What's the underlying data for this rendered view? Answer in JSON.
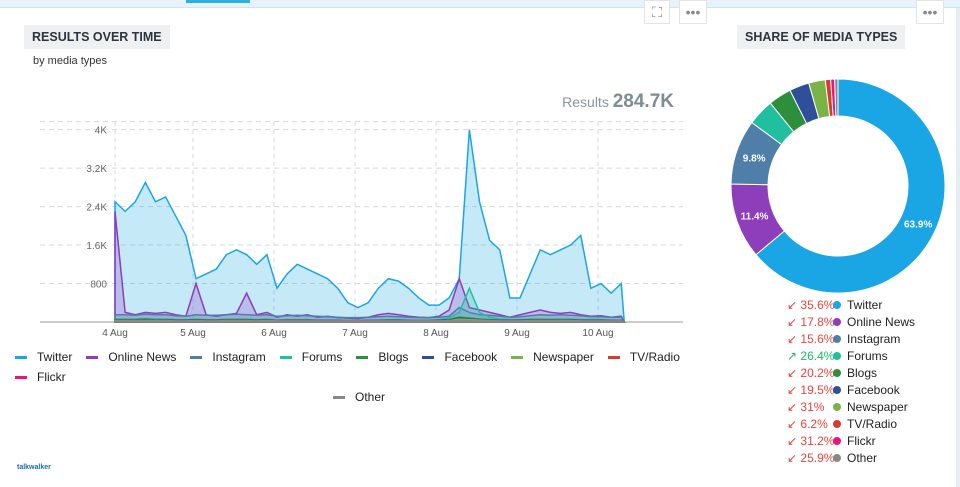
{
  "results_over_time": {
    "title": "RESULTS OVER TIME",
    "subtitle": "by media types",
    "results_label": "Results",
    "results_value": "284.7K"
  },
  "share": {
    "title": "SHARE OF MEDIA TYPES"
  },
  "icons": {
    "expand": "⛶",
    "more": "•••"
  },
  "logo": "talkwalker",
  "chart_data": [
    {
      "type": "area",
      "title": "RESULTS OVER TIME",
      "subtitle": "by media types",
      "x_start": "4 Aug",
      "step_hours": 3,
      "x_ticks": [
        "4 Aug",
        "5 Aug",
        "6 Aug",
        "7 Aug",
        "8 Aug",
        "9 Aug",
        "10 Aug"
      ],
      "y_ticks": [
        "800",
        "1.6K",
        "2.4K",
        "3.2K",
        "4K"
      ],
      "y_tick_values": [
        800,
        1600,
        2400,
        3200,
        4000
      ],
      "ylim": [
        0,
        4200
      ],
      "series": [
        {
          "name": "Twitter",
          "color": "#1aa6e4",
          "values": [
            2500,
            2300,
            2500,
            2900,
            2500,
            2600,
            2200,
            1800,
            900,
            1000,
            1100,
            1400,
            1500,
            1400,
            1200,
            1400,
            700,
            1000,
            1200,
            1100,
            1000,
            900,
            700,
            400,
            300,
            400,
            700,
            900,
            850,
            700,
            500,
            350,
            350,
            500,
            900,
            4000,
            2500,
            1700,
            1500,
            500,
            500,
            1000,
            1500,
            1400,
            1500,
            1600,
            1800,
            700,
            800,
            600,
            800
          ]
        },
        {
          "name": "Online News",
          "color": "#8e3dbb",
          "values": [
            2300,
            200,
            150,
            200,
            180,
            200,
            150,
            120,
            800,
            150,
            120,
            150,
            180,
            600,
            150,
            200,
            100,
            150,
            120,
            150,
            100,
            120,
            90,
            80,
            70,
            100,
            150,
            180,
            150,
            120,
            100,
            90,
            120,
            250,
            900,
            300,
            250,
            200,
            150,
            100,
            150,
            200,
            250,
            200,
            180,
            200,
            150,
            120,
            130,
            100,
            120
          ]
        },
        {
          "name": "Instagram",
          "color": "#4f7fa8",
          "values": [
            150,
            150,
            140,
            160,
            150,
            150,
            130,
            120,
            150,
            140,
            140,
            150,
            160,
            150,
            140,
            150,
            120,
            130,
            140,
            130,
            120,
            110,
            100,
            90,
            90,
            100,
            110,
            120,
            110,
            100,
            90,
            90,
            100,
            120,
            300,
            200,
            150,
            140,
            120,
            100,
            110,
            130,
            150,
            140,
            150,
            140,
            130,
            110,
            110,
            100,
            100
          ]
        },
        {
          "name": "Forums",
          "color": "#1fbfa0",
          "values": [
            60,
            60,
            60,
            70,
            60,
            60,
            50,
            50,
            60,
            50,
            50,
            60,
            60,
            60,
            50,
            60,
            40,
            50,
            50,
            50,
            40,
            40,
            40,
            30,
            30,
            40,
            40,
            50,
            50,
            40,
            40,
            40,
            50,
            80,
            200,
            700,
            200,
            100,
            60,
            50,
            50,
            60,
            60,
            60,
            60,
            60,
            50,
            50,
            50,
            40,
            40
          ]
        },
        {
          "name": "Blogs",
          "color": "#2d8f3c",
          "values": [
            50,
            50,
            50,
            60,
            50,
            50,
            40,
            40,
            50,
            40,
            40,
            50,
            50,
            50,
            40,
            50,
            30,
            40,
            40,
            40,
            30,
            30,
            30,
            30,
            30,
            30,
            30,
            40,
            40,
            30,
            30,
            30,
            40,
            50,
            100,
            80,
            60,
            50,
            40,
            40,
            40,
            50,
            50,
            50,
            50,
            50,
            40,
            40,
            40,
            30,
            30
          ]
        },
        {
          "name": "Facebook",
          "color": "#2f4f9a",
          "values": [
            40,
            40,
            40,
            40,
            40,
            40,
            30,
            30,
            40,
            30,
            30,
            40,
            40,
            40,
            30,
            40,
            30,
            30,
            30,
            30,
            30,
            30,
            30,
            20,
            20,
            30,
            30,
            30,
            30,
            30,
            20,
            20,
            30,
            40,
            80,
            60,
            50,
            40,
            30,
            30,
            30,
            40,
            40,
            40,
            40,
            40,
            30,
            30,
            30,
            30,
            30
          ]
        },
        {
          "name": "Newspaper",
          "color": "#79b447",
          "values": [
            30,
            30,
            30,
            30,
            30,
            30,
            20,
            20,
            30,
            20,
            20,
            30,
            30,
            30,
            20,
            30,
            20,
            20,
            20,
            20,
            20,
            20,
            20,
            20,
            20,
            20,
            20,
            20,
            20,
            20,
            20,
            20,
            20,
            30,
            60,
            50,
            40,
            30,
            20,
            20,
            20,
            30,
            30,
            30,
            30,
            30,
            20,
            20,
            20,
            20,
            20
          ]
        },
        {
          "name": "TV/Radio",
          "color": "#d83a2c",
          "values": [
            10,
            10,
            10,
            10,
            10,
            10,
            10,
            10,
            10,
            10,
            10,
            10,
            10,
            10,
            10,
            10,
            10,
            10,
            10,
            10,
            10,
            10,
            10,
            10,
            10,
            10,
            10,
            10,
            10,
            10,
            10,
            10,
            10,
            10,
            20,
            10,
            10,
            10,
            10,
            10,
            10,
            10,
            10,
            10,
            10,
            10,
            10,
            10,
            10,
            10,
            10
          ]
        },
        {
          "name": "Flickr",
          "color": "#e8157c",
          "values": [
            10,
            10,
            10,
            10,
            10,
            10,
            10,
            10,
            10,
            10,
            10,
            10,
            10,
            10,
            10,
            10,
            10,
            10,
            10,
            10,
            10,
            10,
            10,
            10,
            10,
            10,
            10,
            10,
            10,
            10,
            10,
            10,
            10,
            10,
            10,
            10,
            10,
            10,
            10,
            10,
            10,
            10,
            10,
            10,
            10,
            10,
            10,
            10,
            10,
            10,
            10
          ]
        },
        {
          "name": "Other",
          "color": "#888888",
          "values": [
            20,
            20,
            20,
            20,
            20,
            20,
            20,
            20,
            20,
            20,
            20,
            20,
            20,
            20,
            20,
            20,
            20,
            20,
            20,
            20,
            20,
            20,
            20,
            20,
            20,
            20,
            20,
            20,
            20,
            20,
            20,
            20,
            20,
            20,
            30,
            20,
            20,
            20,
            20,
            20,
            20,
            20,
            20,
            20,
            20,
            20,
            20,
            20,
            20,
            20,
            20
          ]
        }
      ]
    },
    {
      "type": "pie",
      "title": "SHARE OF MEDIA TYPES",
      "slices": [
        {
          "name": "Twitter",
          "value": 63.9,
          "label": "63.9%",
          "color": "#1aa6e4",
          "change": "35.6%",
          "trend": "down"
        },
        {
          "name": "Online News",
          "value": 11.4,
          "label": "11.4%",
          "color": "#8e3dbb",
          "change": "17.8%",
          "trend": "down"
        },
        {
          "name": "Instagram",
          "value": 9.8,
          "label": "9.8%",
          "color": "#4f7fa8",
          "change": "15.6%",
          "trend": "down"
        },
        {
          "name": "Forums",
          "value": 4.0,
          "label": "",
          "color": "#1fbfa0",
          "change": "26.4%",
          "trend": "up"
        },
        {
          "name": "Blogs",
          "value": 3.5,
          "label": "",
          "color": "#2d8f3c",
          "change": "20.2%",
          "trend": "down"
        },
        {
          "name": "Facebook",
          "value": 3.0,
          "label": "",
          "color": "#2f4f9a",
          "change": "19.5%",
          "trend": "down"
        },
        {
          "name": "Newspaper",
          "value": 2.5,
          "label": "",
          "color": "#79b447",
          "change": "31%",
          "trend": "down"
        },
        {
          "name": "TV/Radio",
          "value": 0.8,
          "label": "",
          "color": "#d83a2c",
          "change": "6.2%",
          "trend": "down"
        },
        {
          "name": "Flickr",
          "value": 0.6,
          "label": "",
          "color": "#e8157c",
          "change": "31.2%",
          "trend": "down"
        },
        {
          "name": "Other",
          "value": 0.5,
          "label": "",
          "color": "#888888",
          "change": "25.9%",
          "trend": "down"
        }
      ]
    }
  ]
}
